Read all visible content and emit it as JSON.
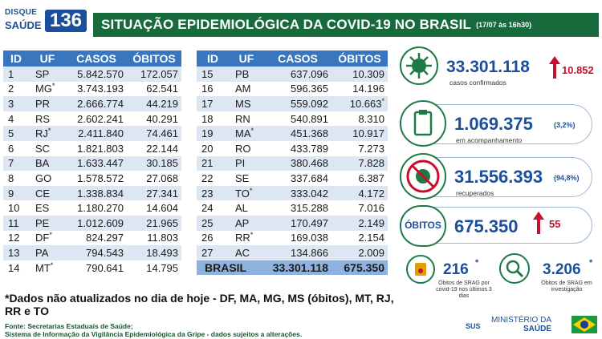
{
  "header": {
    "logo_line1": "DISQUE",
    "logo_line2": "SAÚDE",
    "logo_number": "136",
    "title": "SITUAÇÃO EPIDEMIOLÓGICA DA COVID-19 NO BRASIL",
    "date": "(17/07 às 16h30)"
  },
  "table": {
    "columns": [
      "ID",
      "UF",
      "CASOS",
      "ÓBITOS"
    ],
    "left_rows": [
      {
        "id": "1",
        "uf": "SP",
        "mark": "",
        "casos": "5.842.570",
        "obitos": "172.057",
        "omark": ""
      },
      {
        "id": "2",
        "uf": "MG",
        "mark": "*",
        "casos": "3.743.193",
        "obitos": "62.541",
        "omark": ""
      },
      {
        "id": "3",
        "uf": "PR",
        "mark": "",
        "casos": "2.666.774",
        "obitos": "44.219",
        "omark": ""
      },
      {
        "id": "4",
        "uf": "RS",
        "mark": "",
        "casos": "2.602.241",
        "obitos": "40.291",
        "omark": ""
      },
      {
        "id": "5",
        "uf": "RJ",
        "mark": "*",
        "casos": "2.411.840",
        "obitos": "74.461",
        "omark": ""
      },
      {
        "id": "6",
        "uf": "SC",
        "mark": "",
        "casos": "1.821.803",
        "obitos": "22.144",
        "omark": ""
      },
      {
        "id": "7",
        "uf": "BA",
        "mark": "",
        "casos": "1.633.447",
        "obitos": "30.185",
        "omark": ""
      },
      {
        "id": "8",
        "uf": "GO",
        "mark": "",
        "casos": "1.578.572",
        "obitos": "27.068",
        "omark": ""
      },
      {
        "id": "9",
        "uf": "CE",
        "mark": "",
        "casos": "1.338.834",
        "obitos": "27.341",
        "omark": ""
      },
      {
        "id": "10",
        "uf": "ES",
        "mark": "",
        "casos": "1.180.270",
        "obitos": "14.604",
        "omark": ""
      },
      {
        "id": "11",
        "uf": "PE",
        "mark": "",
        "casos": "1.012.609",
        "obitos": "21.965",
        "omark": ""
      },
      {
        "id": "12",
        "uf": "DF",
        "mark": "*",
        "casos": "824.297",
        "obitos": "11.803",
        "omark": ""
      },
      {
        "id": "13",
        "uf": "PA",
        "mark": "",
        "casos": "794.543",
        "obitos": "18.493",
        "omark": ""
      },
      {
        "id": "14",
        "uf": "MT",
        "mark": "*",
        "casos": "790.641",
        "obitos": "14.795",
        "omark": ""
      }
    ],
    "right_rows": [
      {
        "id": "15",
        "uf": "PB",
        "mark": "",
        "casos": "637.096",
        "obitos": "10.309",
        "omark": ""
      },
      {
        "id": "16",
        "uf": "AM",
        "mark": "",
        "casos": "596.365",
        "obitos": "14.196",
        "omark": ""
      },
      {
        "id": "17",
        "uf": "MS",
        "mark": "",
        "casos": "559.092",
        "obitos": "10.663",
        "omark": "*"
      },
      {
        "id": "18",
        "uf": "RN",
        "mark": "",
        "casos": "540.891",
        "obitos": "8.310",
        "omark": ""
      },
      {
        "id": "19",
        "uf": "MA",
        "mark": "*",
        "casos": "451.368",
        "obitos": "10.917",
        "omark": ""
      },
      {
        "id": "20",
        "uf": "RO",
        "mark": "",
        "casos": "433.789",
        "obitos": "7.273",
        "omark": ""
      },
      {
        "id": "21",
        "uf": "PI",
        "mark": "",
        "casos": "380.468",
        "obitos": "7.828",
        "omark": ""
      },
      {
        "id": "22",
        "uf": "SE",
        "mark": "",
        "casos": "337.684",
        "obitos": "6.387",
        "omark": ""
      },
      {
        "id": "23",
        "uf": "TO",
        "mark": "*",
        "casos": "333.042",
        "obitos": "4.172",
        "omark": ""
      },
      {
        "id": "24",
        "uf": "AL",
        "mark": "",
        "casos": "315.288",
        "obitos": "7.016",
        "omark": ""
      },
      {
        "id": "25",
        "uf": "AP",
        "mark": "",
        "casos": "170.497",
        "obitos": "2.149",
        "omark": ""
      },
      {
        "id": "26",
        "uf": "RR",
        "mark": "*",
        "casos": "169.038",
        "obitos": "2.154",
        "omark": ""
      },
      {
        "id": "27",
        "uf": "AC",
        "mark": "",
        "casos": "134.866",
        "obitos": "2.009",
        "omark": ""
      }
    ],
    "total": {
      "label": "BRASIL",
      "casos": "33.301.118",
      "obitos": "675.350"
    }
  },
  "stats": {
    "confirmed": {
      "value": "33.301.118",
      "delta": "10.852",
      "label": "casos confirmados"
    },
    "monitoring": {
      "value": "1.069.375",
      "pct": "(3,2%)",
      "label": "em acompanhamento"
    },
    "recovered": {
      "value": "31.556.393",
      "pct": "(94,8%)",
      "label": "recuperados"
    },
    "deaths": {
      "tag": "ÓBITOS",
      "value": "675.350",
      "delta": "55"
    },
    "srag_recent": {
      "value": "216",
      "mark": "*",
      "label": "Óbitos de SRAG por covid-19 nos últimos 3 dias"
    },
    "srag_investigation": {
      "value": "3.206",
      "mark": "*",
      "label": "Óbitos de SRAG em investigação"
    }
  },
  "footer": {
    "note": "*Dados não atualizados no dia de hoje - DF, MA, MG, MS (óbitos), MT, RJ, RR e TO",
    "source_line1": "Fonte: Secretarias Estaduais de Saúde;",
    "source_line2": "Sistema de Informação da Vigilância Epidemiológica da Gripe - dados sujeitos a alterações.",
    "sus": "SUS",
    "ministry_line1": "MINISTÉRIO DA",
    "ministry_line2": "SAÚDE"
  },
  "colors": {
    "green": "#166a3c",
    "blue": "#1b4f9c",
    "table_header": "#3a76bd",
    "red": "#c8102e"
  },
  "icons": [
    "virus-icon",
    "clipboard-icon",
    "no-virus-icon",
    "death-box-icon",
    "magnifier-icon",
    "flag-icon"
  ]
}
